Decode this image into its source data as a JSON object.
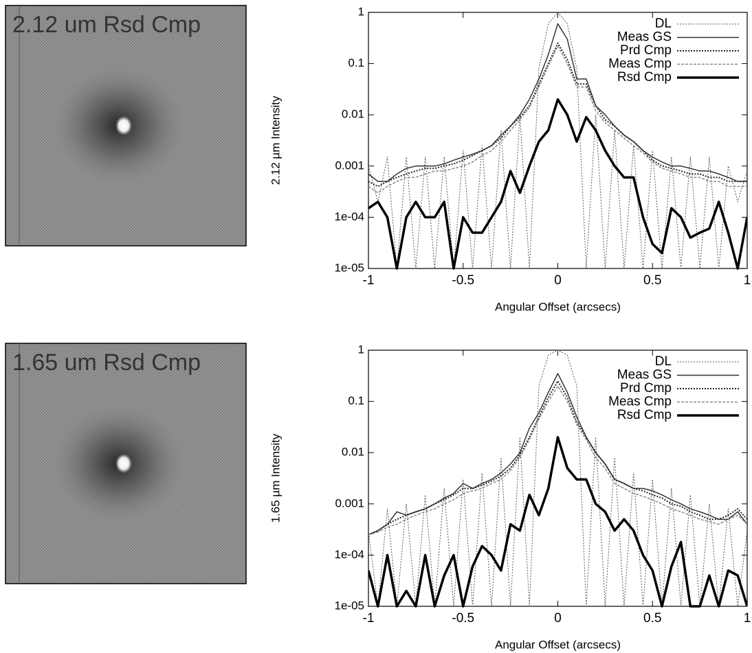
{
  "chart_data": [
    {
      "type": "image",
      "title": "2.12 um Rsd Cmp"
    },
    {
      "type": "line",
      "xlabel": "Angular Offset (arcsecs)",
      "ylabel": "2.12 µm Intensity",
      "xlim": [
        -1,
        1
      ],
      "ylim": [
        1e-05,
        1
      ],
      "log_y": true,
      "legend": "upper right",
      "xticks": [
        -1,
        -0.5,
        0,
        0.5,
        1
      ],
      "yticks": [
        1,
        0.1,
        0.01,
        0.001,
        {
          "value": 0.0001,
          "label": "1e-04"
        },
        {
          "value": 1e-05,
          "label": "1e-05"
        }
      ],
      "x": [
        -1,
        -0.95,
        -0.9,
        -0.85,
        -0.8,
        -0.75,
        -0.7,
        -0.65,
        -0.6,
        -0.55,
        -0.5,
        -0.45,
        -0.4,
        -0.35,
        -0.3,
        -0.25,
        -0.2,
        -0.15,
        -0.1,
        -0.05,
        0,
        0.05,
        0.1,
        0.15,
        0.2,
        0.25,
        0.3,
        0.35,
        0.4,
        0.45,
        0.5,
        0.55,
        0.6,
        0.65,
        0.7,
        0.75,
        0.8,
        0.85,
        0.9,
        0.95,
        1
      ],
      "series": [
        {
          "name": "DL",
          "color": "#555555",
          "dash": "dotted",
          "width": 1,
          "values": [
            0.001,
            0.0002,
            0.0015,
            1e-05,
            0.0015,
            1e-05,
            0.0015,
            1e-05,
            0.0015,
            1e-05,
            0.002,
            1e-05,
            0.0025,
            1e-05,
            0.005,
            1e-05,
            0.01,
            1e-05,
            0.08,
            0.6,
            1,
            0.6,
            0.08,
            1e-05,
            0.01,
            1e-05,
            0.005,
            1e-05,
            0.0025,
            1e-05,
            0.002,
            1e-05,
            0.0015,
            1e-05,
            0.0015,
            1e-05,
            0.0015,
            1e-05,
            0.001,
            0.0002,
            0.0008
          ]
        },
        {
          "name": "Meas GS",
          "color": "#333333",
          "dash": "solid",
          "width": 1.5,
          "values": [
            0.0007,
            0.0005,
            0.0005,
            0.0007,
            0.0009,
            0.001,
            0.001,
            0.001,
            0.0011,
            0.0013,
            0.0015,
            0.0017,
            0.002,
            0.0025,
            0.004,
            0.006,
            0.01,
            0.02,
            0.05,
            0.15,
            0.6,
            0.3,
            0.05,
            0.05,
            0.015,
            0.01,
            0.006,
            0.004,
            0.003,
            0.002,
            0.0015,
            0.0012,
            0.001,
            0.001,
            0.0009,
            0.0008,
            0.0008,
            0.0007,
            0.0006,
            0.0005,
            0.0005
          ]
        },
        {
          "name": "Prd Cmp",
          "color": "#222222",
          "dash": "dotted",
          "width": 2,
          "values": [
            0.0005,
            0.0004,
            0.0005,
            0.0006,
            0.0007,
            0.0008,
            0.0009,
            0.0009,
            0.001,
            0.0011,
            0.0013,
            0.0016,
            0.002,
            0.0025,
            0.0035,
            0.006,
            0.009,
            0.015,
            0.04,
            0.1,
            0.25,
            0.12,
            0.04,
            0.04,
            0.015,
            0.008,
            0.006,
            0.004,
            0.003,
            0.002,
            0.0013,
            0.001,
            0.0009,
            0.0008,
            0.0007,
            0.0007,
            0.0006,
            0.0006,
            0.0005,
            0.0005,
            0.0005
          ]
        },
        {
          "name": "Meas Cmp",
          "color": "#888888",
          "dash": "dashed",
          "width": 1.5,
          "values": [
            0.0004,
            0.0003,
            0.0004,
            0.0005,
            0.0006,
            0.0006,
            0.0007,
            0.0008,
            0.0008,
            0.0009,
            0.001,
            0.0012,
            0.0016,
            0.002,
            0.003,
            0.005,
            0.008,
            0.014,
            0.035,
            0.09,
            0.22,
            0.1,
            0.035,
            0.035,
            0.012,
            0.007,
            0.005,
            0.0035,
            0.0025,
            0.0018,
            0.0012,
            0.0009,
            0.0008,
            0.0007,
            0.0006,
            0.0006,
            0.0005,
            0.0005,
            0.0004,
            0.0004,
            0.0004
          ]
        },
        {
          "name": "Rsd Cmp",
          "color": "#000000",
          "dash": "solid",
          "width": 3.5,
          "values": [
            0.00015,
            0.0002,
            0.0001,
            1e-05,
            0.0001,
            0.0002,
            0.0001,
            0.0001,
            0.0002,
            1e-05,
            0.0001,
            5e-05,
            5e-05,
            0.0001,
            0.0002,
            0.0008,
            0.0003,
            0.001,
            0.003,
            0.005,
            0.02,
            0.01,
            0.003,
            0.009,
            0.005,
            0.002,
            0.001,
            0.0006,
            0.0006,
            0.0001,
            3e-05,
            2e-05,
            0.00015,
            0.0001,
            4e-05,
            5e-05,
            6e-05,
            0.0002,
            5e-05,
            1e-05,
            0.0001
          ]
        }
      ]
    },
    {
      "type": "image",
      "title": "1.65 um Rsd Cmp"
    },
    {
      "type": "line",
      "xlabel": "Angular Offset (arcsecs)",
      "ylabel": "1.65 µm Intensity",
      "xlim": [
        -1,
        1
      ],
      "ylim": [
        1e-05,
        1
      ],
      "log_y": true,
      "legend": "upper right",
      "xticks": [
        -1,
        -0.5,
        0,
        0.5,
        1
      ],
      "yticks": [
        1,
        0.1,
        0.01,
        0.001,
        {
          "value": 0.0001,
          "label": "1e-04"
        },
        {
          "value": 1e-05,
          "label": "1e-05"
        }
      ],
      "x": [
        -1,
        -0.95,
        -0.9,
        -0.85,
        -0.8,
        -0.75,
        -0.7,
        -0.65,
        -0.6,
        -0.55,
        -0.5,
        -0.45,
        -0.4,
        -0.35,
        -0.3,
        -0.25,
        -0.2,
        -0.15,
        -0.1,
        -0.05,
        0,
        0.05,
        0.1,
        0.15,
        0.2,
        0.25,
        0.3,
        0.35,
        0.4,
        0.45,
        0.5,
        0.55,
        0.6,
        0.65,
        0.7,
        0.75,
        0.8,
        0.85,
        0.9,
        0.95,
        1
      ],
      "series": [
        {
          "name": "DL",
          "color": "#555555",
          "dash": "dotted",
          "width": 1,
          "values": [
            0.0003,
            1e-05,
            0.0008,
            1e-05,
            0.001,
            1e-05,
            0.0015,
            1e-05,
            0.002,
            1e-05,
            0.003,
            1e-05,
            0.004,
            1e-05,
            0.008,
            1e-05,
            0.02,
            1e-05,
            0.2,
            0.8,
            1,
            0.8,
            0.2,
            1e-05,
            0.02,
            1e-05,
            0.008,
            1e-05,
            0.004,
            1e-05,
            0.003,
            1e-05,
            0.002,
            1e-05,
            0.0015,
            1e-05,
            0.001,
            1e-05,
            0.0008,
            1e-05,
            0.0003
          ]
        },
        {
          "name": "Meas GS",
          "color": "#333333",
          "dash": "solid",
          "width": 1.5,
          "values": [
            0.00025,
            0.0003,
            0.0004,
            0.0007,
            0.0006,
            0.0007,
            0.0008,
            0.001,
            0.0013,
            0.0016,
            0.0025,
            0.002,
            0.0025,
            0.003,
            0.004,
            0.006,
            0.01,
            0.03,
            0.06,
            0.15,
            0.35,
            0.15,
            0.05,
            0.02,
            0.01,
            0.006,
            0.003,
            0.0025,
            0.002,
            0.002,
            0.0018,
            0.0015,
            0.0012,
            0.001,
            0.0008,
            0.0007,
            0.0006,
            0.0005,
            0.0005,
            0.0007,
            0.0004
          ]
        },
        {
          "name": "Prd Cmp",
          "color": "#222222",
          "dash": "dotted",
          "width": 2,
          "values": [
            0.00025,
            0.0003,
            0.0004,
            0.0005,
            0.0006,
            0.0007,
            0.0008,
            0.001,
            0.0012,
            0.0015,
            0.002,
            0.002,
            0.0023,
            0.0028,
            0.0035,
            0.005,
            0.009,
            0.02,
            0.05,
            0.12,
            0.25,
            0.12,
            0.04,
            0.02,
            0.01,
            0.006,
            0.003,
            0.0025,
            0.002,
            0.0018,
            0.0015,
            0.0013,
            0.001,
            0.0009,
            0.0007,
            0.0006,
            0.0005,
            0.0005,
            0.0006,
            0.0008,
            0.0005
          ]
        },
        {
          "name": "Meas Cmp",
          "color": "#888888",
          "dash": "dashed",
          "width": 1.5,
          "values": [
            0.00025,
            0.00028,
            0.00035,
            0.0004,
            0.0005,
            0.0006,
            0.0007,
            0.0008,
            0.001,
            0.0012,
            0.0016,
            0.0018,
            0.002,
            0.0025,
            0.003,
            0.0045,
            0.008,
            0.018,
            0.045,
            0.1,
            0.2,
            0.1,
            0.035,
            0.018,
            0.008,
            0.005,
            0.0025,
            0.002,
            0.0016,
            0.0014,
            0.0012,
            0.001,
            0.0008,
            0.0007,
            0.0006,
            0.0005,
            0.00045,
            0.0004,
            0.0005,
            0.0006,
            0.0004
          ]
        },
        {
          "name": "Rsd Cmp",
          "color": "#000000",
          "dash": "solid",
          "width": 3.5,
          "values": [
            5e-05,
            1e-05,
            0.0001,
            1e-05,
            2e-05,
            1e-05,
            0.0001,
            1e-05,
            4e-05,
            0.0001,
            1e-05,
            6e-05,
            0.00015,
            0.0001,
            5e-05,
            0.0004,
            0.0003,
            0.0015,
            0.0006,
            0.002,
            0.02,
            0.005,
            0.003,
            0.003,
            0.001,
            0.0007,
            0.0003,
            0.0005,
            0.0003,
            0.0001,
            5e-05,
            1e-05,
            6e-05,
            0.00018,
            1e-05,
            1e-05,
            4e-05,
            1e-05,
            5e-05,
            4e-05,
            1e-05
          ]
        }
      ]
    }
  ]
}
